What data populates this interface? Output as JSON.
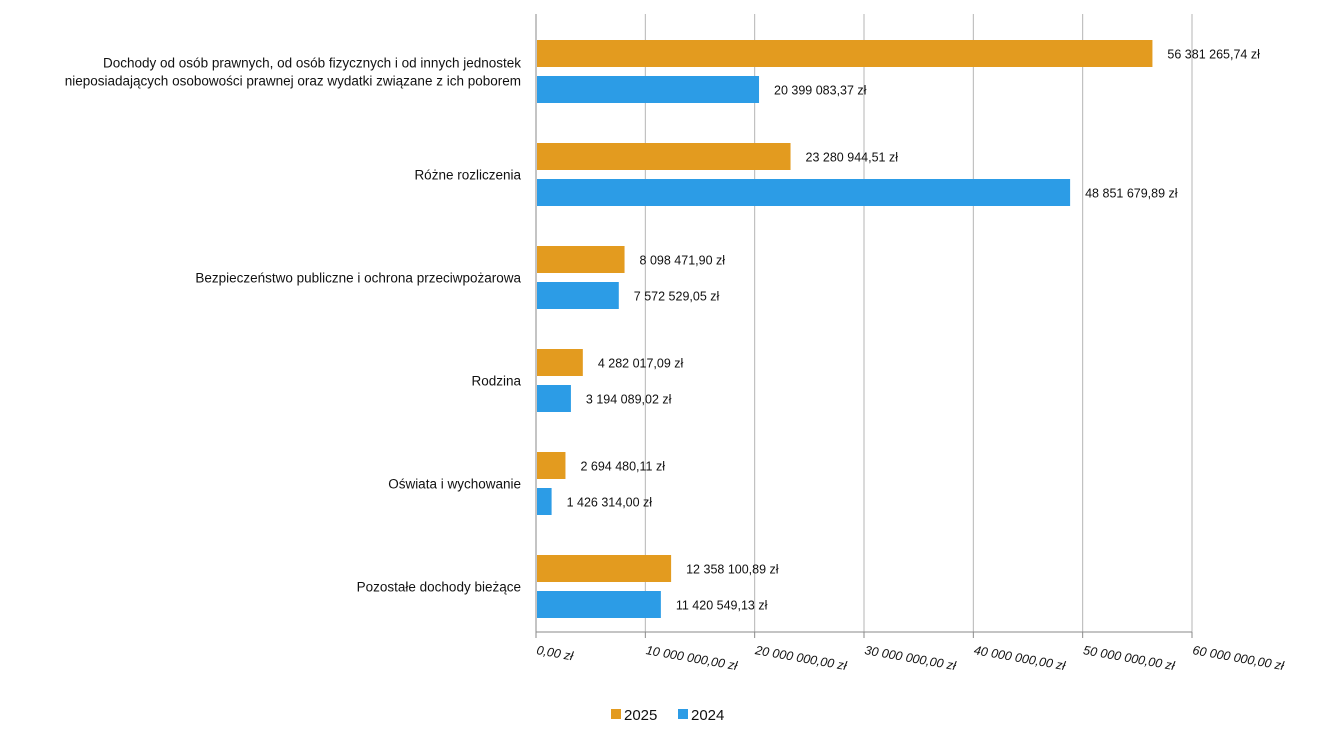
{
  "chart_data": {
    "type": "bar",
    "orientation": "horizontal",
    "title": "",
    "xlabel": "",
    "ylabel": "",
    "categories": [
      [
        "Dochody od osób prawnych, od osób fizycznych i od innych jednostek",
        "nieposiadających osobowości prawnej oraz wydatki związane z ich poborem"
      ],
      [
        "Różne rozliczenia"
      ],
      [
        "Bezpieczeństwo publiczne i ochrona przeciwpożarowa"
      ],
      [
        "Rodzina"
      ],
      [
        "Oświata i wychowanie"
      ],
      [
        "Pozostałe dochody bieżące"
      ]
    ],
    "series": [
      {
        "name": "2025",
        "color": "#E39B1F",
        "values": [
          56381265.74,
          23280944.51,
          8098471.9,
          4282017.09,
          2694480.11,
          12358100.89
        ],
        "labels": [
          "56 381 265,74 zł",
          "23 280 944,51 zł",
          "8 098 471,90 zł",
          "4 282 017,09 zł",
          "2 694 480,11 zł",
          "12 358 100,89 zł"
        ]
      },
      {
        "name": "2024",
        "color": "#2C9CE6",
        "values": [
          20399083.37,
          48851679.89,
          7572529.05,
          3194089.02,
          1426314.0,
          11420549.13
        ],
        "labels": [
          "20 399 083,37 zł",
          "48 851 679,89 zł",
          "7 572 529,05 zł",
          "3 194 089,02 zł",
          "1 426 314,00 zł",
          "11 420 549,13 zł"
        ]
      }
    ],
    "xlim": [
      0,
      60000000
    ],
    "ticks": [
      0,
      10000000,
      20000000,
      30000000,
      40000000,
      50000000,
      60000000
    ],
    "tick_labels": [
      "0,00 zł",
      "10 000 000,00 zł",
      "20 000 000,00 zł",
      "30 000 000,00 zł",
      "40 000 000,00 zł",
      "50 000 000,00 zł",
      "60 000 000,00 zł"
    ],
    "grid": true,
    "legend_position": "bottom"
  }
}
